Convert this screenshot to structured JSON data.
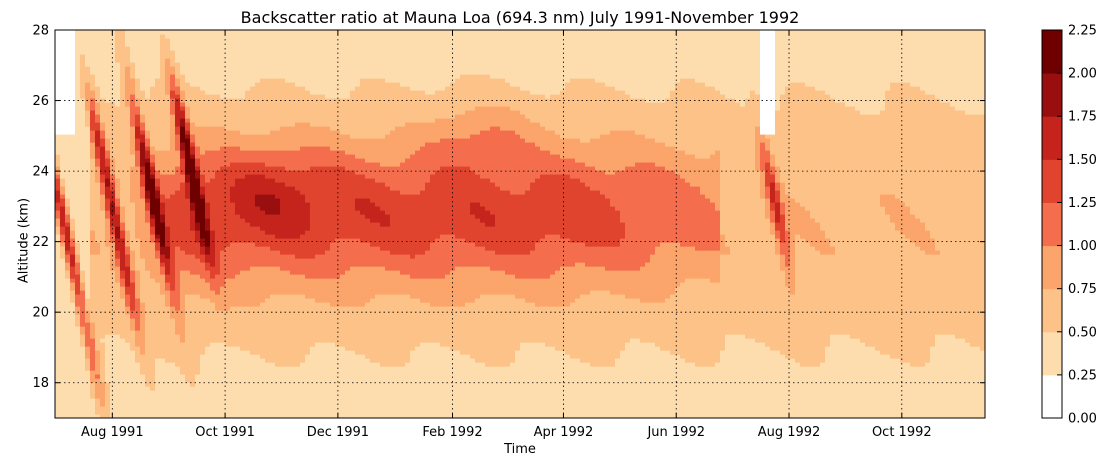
{
  "chart_data": {
    "type": "heatmap",
    "title": "Backscatter ratio at Mauna Loa (694.3 nm) July 1991-November 1992",
    "xlabel": "Time",
    "ylabel": "Altitude (km)",
    "x_ticks": [
      "Aug 1991",
      "Oct 1991",
      "Dec 1991",
      "Feb 1992",
      "Apr 1992",
      "Jun 1992",
      "Aug 1992",
      "Oct 1992"
    ],
    "x_range": [
      "1991-07-01",
      "1992-11-15"
    ],
    "y_ticks": [
      18,
      20,
      22,
      24,
      26,
      28
    ],
    "ylim": [
      17,
      28
    ],
    "grid": true,
    "colorbar": {
      "levels": [
        0.0,
        0.25,
        0.5,
        0.75,
        1.0,
        1.25,
        1.5,
        1.75,
        2.0,
        2.25
      ],
      "tick_labels": [
        "0.00",
        "0.25",
        "0.50",
        "0.75",
        "1.00",
        "1.25",
        "1.50",
        "1.75",
        "2.00",
        "2.25"
      ],
      "colors": [
        "#ffffff",
        "#fddcae",
        "#fcc287",
        "#fba46b",
        "#f46d4d",
        "#e0442f",
        "#c4241c",
        "#990f0f",
        "#6e0000"
      ]
    },
    "features": [
      {
        "time": "1991-07-08",
        "altitude_km": [
          18.5,
          24.5
        ],
        "peak_value": 1.8,
        "description": "descending aerosol streak"
      },
      {
        "time": "1991-08-01",
        "altitude_km": [
          19.5,
          25.5
        ],
        "peak_value": 1.75
      },
      {
        "time": "1991-08-22",
        "altitude_km": [
          20.0,
          26.0
        ],
        "peak_value": 1.9
      },
      {
        "time": "1991-09-12",
        "altitude_km": [
          21.0,
          25.5
        ],
        "peak_value": 2.1
      },
      {
        "time": "1991-10-01 to 1992-06-01",
        "altitude_km": [
          20.5,
          25.5
        ],
        "peak_value": 1.4,
        "description": "main layer core ~22-24 km"
      },
      {
        "time": "1992-07-25",
        "altitude_km": [
          21.5,
          24.5
        ],
        "peak_value": 1.6
      }
    ]
  }
}
